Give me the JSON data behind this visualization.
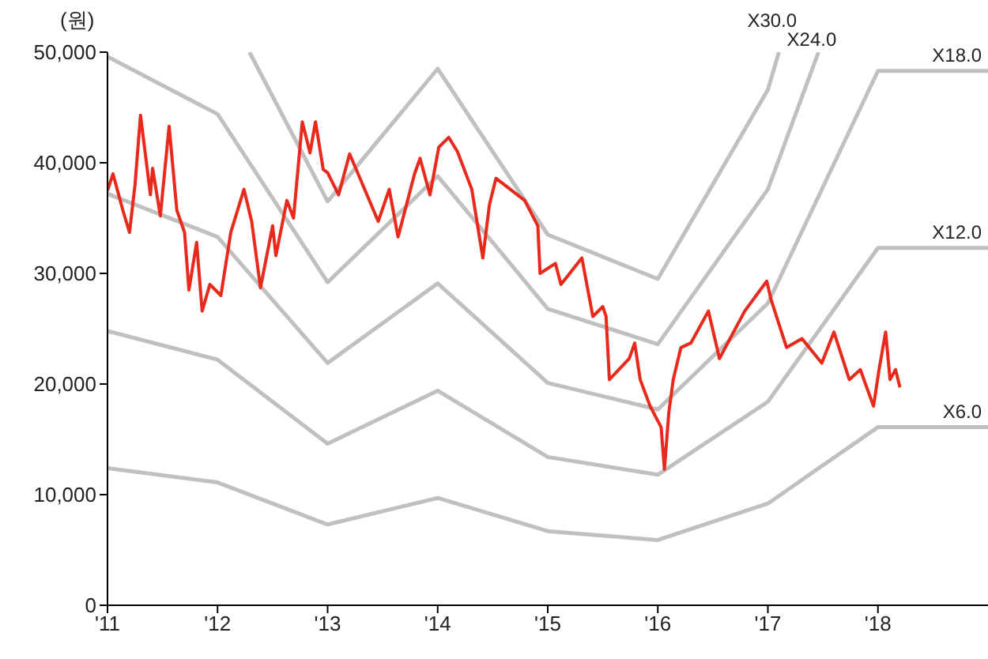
{
  "chart_data": {
    "type": "line",
    "ylabel": "(원)",
    "xlim": [
      2011,
      2019
    ],
    "xticks": [
      {
        "value": 2011,
        "label": "'11"
      },
      {
        "value": 2012,
        "label": "'12"
      },
      {
        "value": 2013,
        "label": "'13"
      },
      {
        "value": 2014,
        "label": "'14"
      },
      {
        "value": 2015,
        "label": "'15"
      },
      {
        "value": 2016,
        "label": "'16"
      },
      {
        "value": 2017,
        "label": "'17"
      },
      {
        "value": 2018,
        "label": "'18"
      }
    ],
    "ylim": [
      0,
      50000
    ],
    "yticks": [
      {
        "value": 0,
        "label": "0"
      },
      {
        "value": 10000,
        "label": "10,000"
      },
      {
        "value": 20000,
        "label": "20,000"
      },
      {
        "value": 30000,
        "label": "30,000"
      },
      {
        "value": 40000,
        "label": "40,000"
      },
      {
        "value": 50000,
        "label": "50,000"
      }
    ],
    "grid": false,
    "legend": false,
    "marker": "none",
    "line_style": "solid",
    "series": [
      {
        "name": "X30.0",
        "color": "#c0c0c0",
        "x": [
          2012.29,
          2013,
          2014,
          2015,
          2016,
          2017,
          2017.1
        ],
        "values": [
          50000,
          36500,
          48500,
          33500,
          29500,
          46600,
          50000
        ]
      },
      {
        "name": "X24.0",
        "color": "#c0c0c0",
        "x": [
          2011,
          2012,
          2013,
          2014,
          2015,
          2016,
          2017,
          2017.46
        ],
        "values": [
          49600,
          44400,
          29200,
          38800,
          26800,
          23600,
          37600,
          50000
        ]
      },
      {
        "name": "X18.0",
        "color": "#c0c0c0",
        "x": [
          2011,
          2012,
          2013,
          2014,
          2015,
          2016,
          2017,
          2018,
          2019
        ],
        "values": [
          37200,
          33300,
          21900,
          29100,
          20100,
          17700,
          27300,
          48300,
          48300
        ]
      },
      {
        "name": "X12.0",
        "color": "#c0c0c0",
        "x": [
          2011,
          2012,
          2013,
          2014,
          2015,
          2016,
          2017,
          2018,
          2019
        ],
        "values": [
          24800,
          22200,
          14600,
          19400,
          13400,
          11800,
          18400,
          32300,
          32300
        ]
      },
      {
        "name": "X6.0",
        "color": "#c0c0c0",
        "x": [
          2011,
          2012,
          2013,
          2014,
          2015,
          2016,
          2017,
          2018,
          2019
        ],
        "values": [
          12400,
          11100,
          7300,
          9700,
          6700,
          5900,
          9200,
          16100,
          16100
        ]
      },
      {
        "color": "#e8291c",
        "x": [
          2011,
          2011.05,
          2011.14,
          2011.2,
          2011.25,
          2011.3,
          2011.39,
          2011.41,
          2011.48,
          2011.56,
          2011.63,
          2011.7,
          2011.74,
          2011.81,
          2011.86,
          2011.93,
          2012.03,
          2012.12,
          2012.24,
          2012.31,
          2012.39,
          2012.5,
          2012.53,
          2012.63,
          2012.69,
          2012.77,
          2012.84,
          2012.89,
          2012.96,
          2013,
          2013.1,
          2013.2,
          2013.46,
          2013.56,
          2013.64,
          2013.79,
          2013.84,
          2013.93,
          2014.01,
          2014.1,
          2014.18,
          2014.31,
          2014.41,
          2014.47,
          2014.53,
          2014.79,
          2014.91,
          2014.93,
          2015.07,
          2015.12,
          2015.31,
          2015.41,
          2015.5,
          2015.53,
          2015.56,
          2015.74,
          2015.79,
          2015.84,
          2015.93,
          2016.03,
          2016.06,
          2016.1,
          2016.14,
          2016.21,
          2016.3,
          2016.46,
          2016.56,
          2016.79,
          2016.99,
          2017.03,
          2017.17,
          2017.31,
          2017.49,
          2017.6,
          2017.74,
          2017.84,
          2017.96,
          2018.01,
          2018.07,
          2018.11,
          2018.16,
          2018.2
        ],
        "values": [
          37500,
          39000,
          35700,
          33700,
          38000,
          44300,
          37100,
          39500,
          35200,
          43300,
          35700,
          33700,
          28500,
          32800,
          26600,
          29000,
          28000,
          33700,
          37600,
          34700,
          28700,
          34300,
          31600,
          36600,
          35000,
          43700,
          40900,
          43700,
          39400,
          39100,
          37100,
          40800,
          34700,
          37600,
          33300,
          39000,
          40400,
          37100,
          41400,
          42300,
          41000,
          37600,
          31400,
          36200,
          38600,
          36600,
          34300,
          30000,
          30900,
          29000,
          31400,
          26100,
          27000,
          26100,
          20400,
          22300,
          23700,
          20400,
          18000,
          16100,
          12300,
          17400,
          20400,
          23300,
          23700,
          26600,
          22300,
          26600,
          29300,
          27600,
          23300,
          24100,
          21900,
          24700,
          20400,
          21300,
          18000,
          21300,
          24700,
          20400,
          21300,
          19700
        ]
      }
    ]
  }
}
